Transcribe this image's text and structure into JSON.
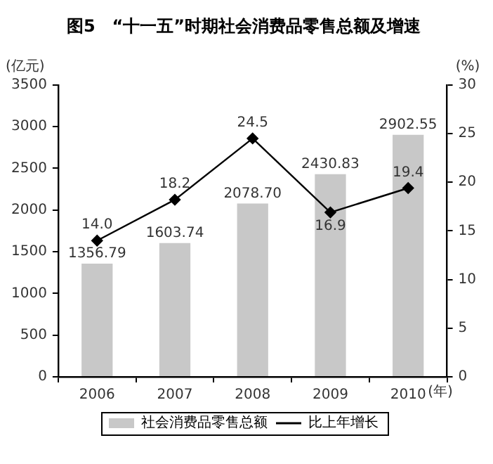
{
  "chart_data": {
    "type": "bar",
    "title": "图5　“十一五”时期社会消费品零售总额及增速",
    "xlabel": "(年)",
    "ylabel": "(亿元)",
    "y2label": "(%)",
    "categories": [
      "2006",
      "2007",
      "2008",
      "2009",
      "2010"
    ],
    "series": [
      {
        "name": "社会消费品零售总额",
        "color": "#c8c8c8",
        "values": [
          1356.79,
          1603.74,
          2078.7,
          2430.83,
          2902.55
        ],
        "value_labels": [
          "1356.79",
          "1603.74",
          "2078.70",
          "2430.83",
          "2902.55"
        ]
      },
      {
        "name": "比上年增长",
        "type": "line",
        "axis": "y2",
        "color": "#000000",
        "marker": "diamond",
        "values": [
          14.0,
          18.2,
          24.5,
          16.9,
          19.4
        ],
        "value_labels": [
          "14.0",
          "18.2",
          "24.5",
          "16.9",
          "19.4"
        ]
      }
    ],
    "ylim": [
      0,
      3500
    ],
    "yticks": [
      0,
      500,
      1000,
      1500,
      2000,
      2500,
      3000,
      3500
    ],
    "y2lim": [
      0,
      30
    ],
    "y2ticks": [
      0,
      5,
      10,
      15,
      20,
      25,
      30
    ],
    "grid": false,
    "legend": "bottom"
  }
}
